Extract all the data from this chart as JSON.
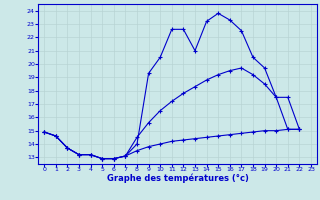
{
  "xlabel": "Graphe des températures (°c)",
  "bg_color": "#cce8e8",
  "line_color": "#0000cc",
  "grid_color": "#b8d4d4",
  "xmin": 0,
  "xmax": 23,
  "ymin": 13,
  "ymax": 24,
  "line1_y": [
    14.9,
    14.6,
    13.7,
    13.2,
    13.2,
    12.9,
    12.9,
    13.1,
    14.0,
    19.3,
    20.5,
    22.6,
    22.6,
    21.0,
    23.2,
    23.8,
    23.3,
    22.5,
    20.5,
    19.7,
    17.5,
    15.1,
    15.1,
    null
  ],
  "line2_y": [
    14.9,
    14.6,
    13.7,
    13.2,
    13.2,
    12.9,
    12.9,
    13.1,
    14.5,
    15.6,
    16.5,
    17.2,
    17.8,
    18.3,
    18.8,
    19.2,
    19.5,
    19.7,
    19.2,
    18.5,
    17.5,
    17.5,
    15.1,
    null
  ],
  "line3_y": [
    14.9,
    14.6,
    13.7,
    13.2,
    13.2,
    12.9,
    12.9,
    13.1,
    13.5,
    13.8,
    14.0,
    14.2,
    14.3,
    14.4,
    14.5,
    14.6,
    14.7,
    14.8,
    14.9,
    15.0,
    15.0,
    15.1,
    15.1,
    null
  ]
}
